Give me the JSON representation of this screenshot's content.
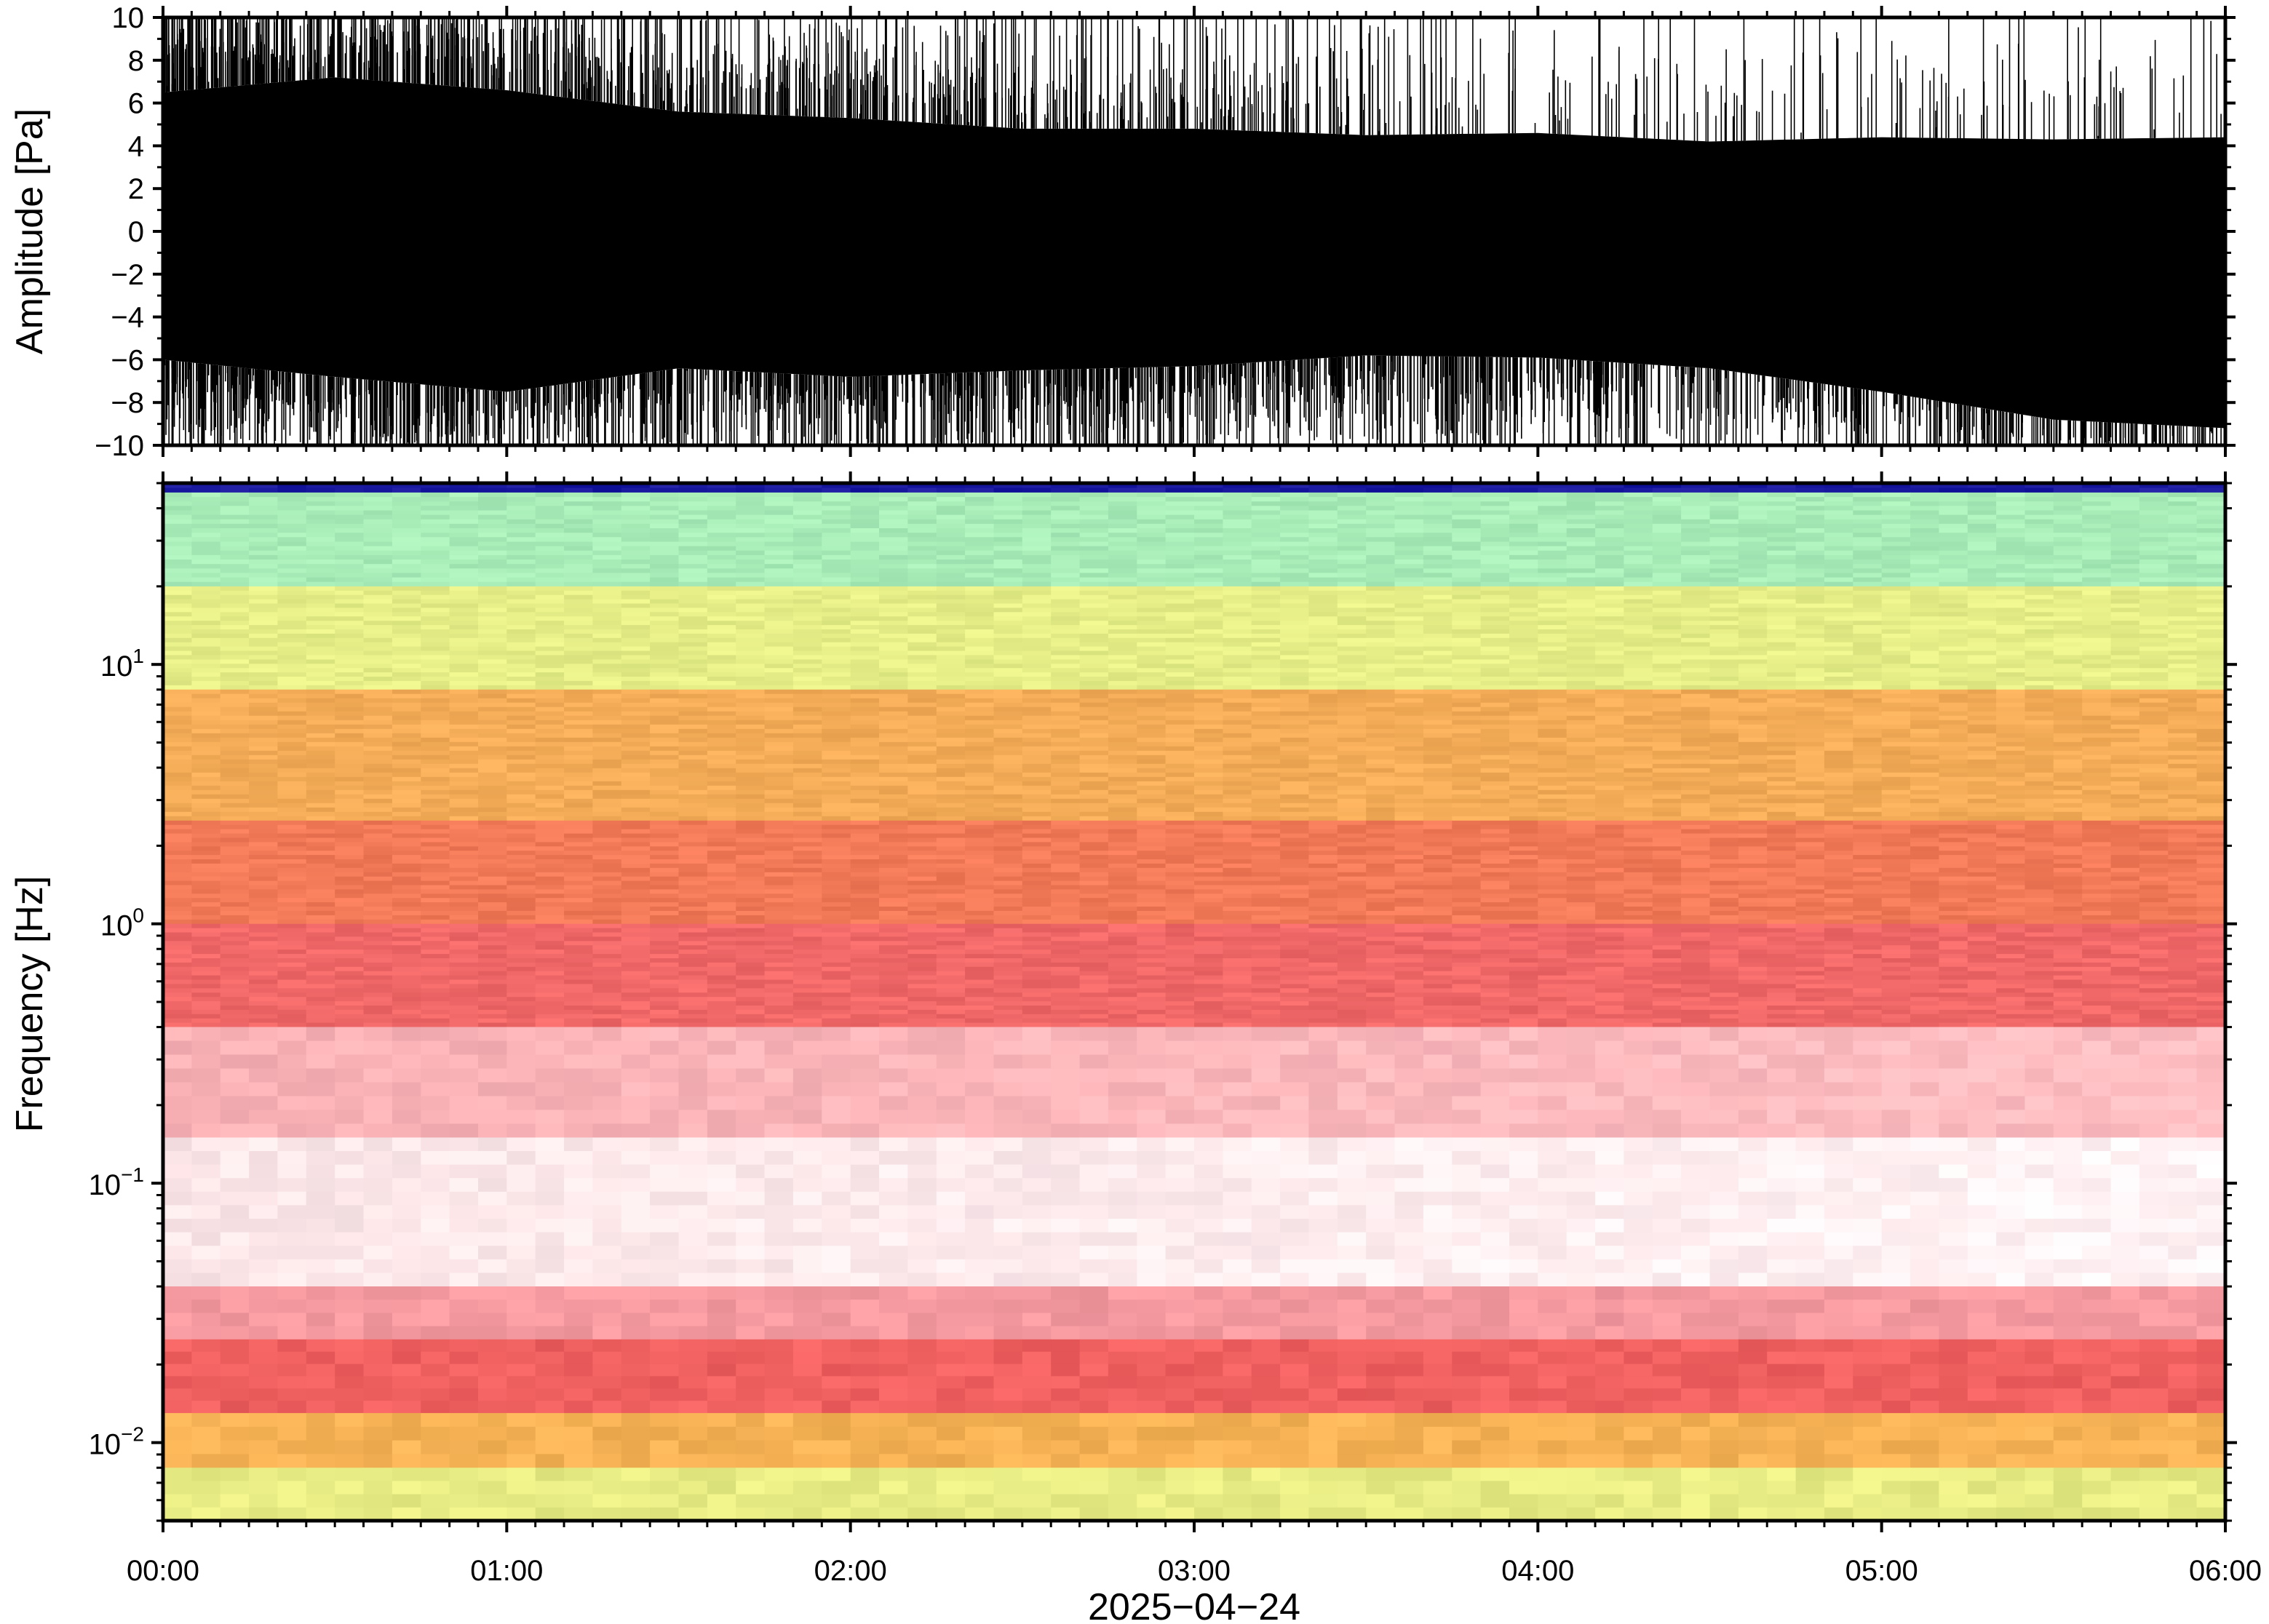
{
  "chart_data": [
    {
      "type": "line",
      "panel": "waveform",
      "ylabel": "Amplitude [Pa]",
      "ylim": [
        -10,
        10
      ],
      "yticks": [
        "10",
        "8",
        "6",
        "4",
        "2",
        "0",
        "−2",
        "−4",
        "−6",
        "−8",
        "−10"
      ],
      "ytick_values": [
        10,
        8,
        6,
        4,
        2,
        0,
        -2,
        -4,
        -6,
        -8,
        -10
      ],
      "xlim_hours": [
        0,
        6
      ],
      "series": [
        {
          "fill_color": "#000000",
          "envelope_hours": [
            0,
            0.5,
            1,
            1.5,
            2,
            2.5,
            3,
            3.5,
            4,
            4.5,
            5,
            5.5,
            6
          ],
          "upper_envelope": [
            6.5,
            7.2,
            6.6,
            5.6,
            5.3,
            4.8,
            4.8,
            4.5,
            4.6,
            4.2,
            4.4,
            4.3,
            4.4
          ],
          "lower_envelope": [
            -6.0,
            -6.8,
            -7.5,
            -6.4,
            -6.8,
            -6.5,
            -6.3,
            -5.8,
            -5.9,
            -6.4,
            -7.5,
            -8.8,
            -9.2
          ],
          "clipped_at": [
            -10,
            10
          ]
        }
      ]
    },
    {
      "type": "heatmap",
      "panel": "spectrogram",
      "ylabel": "Frequency [Hz]",
      "xlabel": "2025−04−24",
      "yscale": "log",
      "ylim": [
        0.005,
        50
      ],
      "yticks": [
        {
          "value": 10,
          "base": "10",
          "exp": "1"
        },
        {
          "value": 1,
          "base": "10",
          "exp": "0"
        },
        {
          "value": 0.1,
          "base": "10",
          "exp": "−1"
        },
        {
          "value": 0.01,
          "base": "10",
          "exp": "−2"
        }
      ],
      "xlim_hours": [
        0,
        6
      ],
      "xticks": [
        {
          "hours": 0,
          "label": "00:00"
        },
        {
          "hours": 1,
          "label": "01:00"
        },
        {
          "hours": 2,
          "label": "02:00"
        },
        {
          "hours": 3,
          "label": "03:00"
        },
        {
          "hours": 4,
          "label": "04:00"
        },
        {
          "hours": 5,
          "label": "05:00"
        },
        {
          "hours": 6,
          "label": "06:00"
        }
      ],
      "colormap": [
        "#0a1f8c",
        "#3fe0d0",
        "#7fe6b0",
        "#e0f08a",
        "#f6c86a",
        "#f39a48",
        "#f06060",
        "#f8b8bc",
        "#ffffff"
      ],
      "colormap_note": "low power → high power order as rendered: blue, cyan, green, yellow, orange, red, pink, white",
      "bands": [
        {
          "f_high": 50,
          "f_low": 46,
          "color": "#1a1aa0"
        },
        {
          "f_high": 46,
          "f_low": 20,
          "color": "#a8ecb8"
        },
        {
          "f_high": 20,
          "f_low": 8,
          "color": "#e6ee88"
        },
        {
          "f_high": 8,
          "f_low": 2.5,
          "color": "#f4ac58"
        },
        {
          "f_high": 2.5,
          "f_low": 1.0,
          "color": "#f27a58"
        },
        {
          "f_high": 1.0,
          "f_low": 0.4,
          "color": "#f06868"
        },
        {
          "f_high": 0.4,
          "f_low": 0.15,
          "color": "#f8b0b4"
        },
        {
          "f_high": 0.15,
          "f_low": 0.04,
          "color": "#fde6e8"
        },
        {
          "f_high": 0.04,
          "f_low": 0.025,
          "color": "#f59aa0"
        },
        {
          "f_high": 0.025,
          "f_low": 0.013,
          "color": "#ef6060"
        },
        {
          "f_high": 0.013,
          "f_low": 0.008,
          "color": "#f6b255"
        },
        {
          "f_high": 0.008,
          "f_low": 0.005,
          "color": "#e8ec84"
        }
      ]
    }
  ]
}
